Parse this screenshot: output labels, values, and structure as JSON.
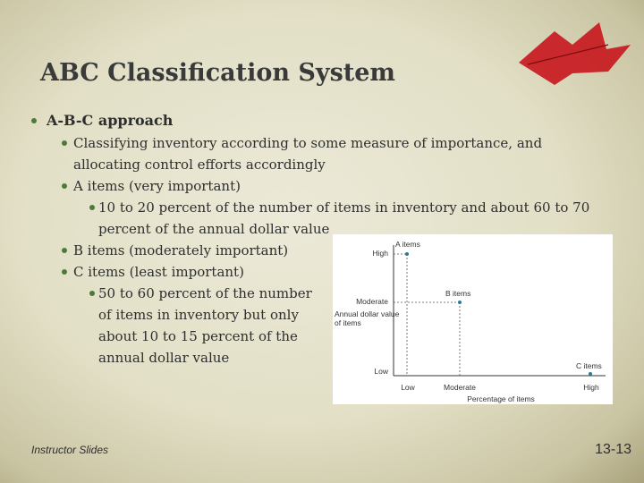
{
  "title": "ABC Classification System",
  "bullets": [
    {
      "text": "A-B-C approach",
      "children": [
        {
          "text": "Classifying inventory according to some measure of importance, and allocating control efforts accordingly"
        },
        {
          "text": "A items (very important)",
          "children": [
            {
              "text": "10 to 20 percent of the number of items in inventory and about 60 to 70 percent of the annual dollar value"
            }
          ]
        },
        {
          "text": "B items (moderately important)"
        },
        {
          "text": "C items (least important)",
          "children": [
            {
              "text": "50 to 60 percent of the number of items in inventory but only about 10 to 15 percent of the annual dollar value"
            }
          ]
        }
      ]
    }
  ],
  "figure": {
    "y_axis_label": "Annual dollar value of items",
    "x_axis_label": "Percentage of items",
    "y_levels": [
      "High",
      "Moderate",
      "Low"
    ],
    "x_levels": [
      "Low",
      "Moderate",
      "High"
    ],
    "points": [
      "A items",
      "B items",
      "C items"
    ]
  },
  "footer": {
    "left": "Instructor Slides",
    "page": "13-13"
  }
}
